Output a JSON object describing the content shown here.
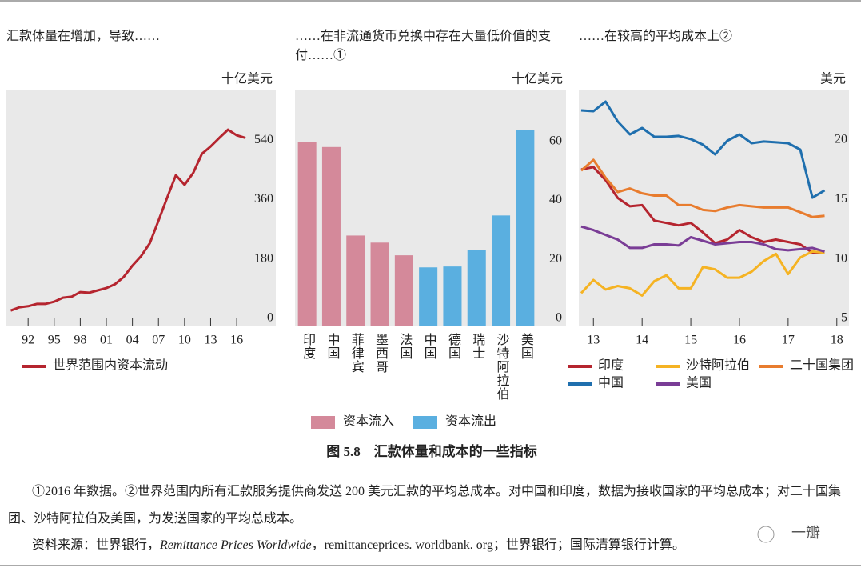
{
  "chart_data": [
    {
      "type": "line",
      "title": "汇款体量在增加，导致……",
      "unit": "十亿美元",
      "x": [
        1990,
        1991,
        1992,
        1993,
        1994,
        1995,
        1996,
        1997,
        1998,
        1999,
        2000,
        2001,
        2002,
        2003,
        2004,
        2005,
        2006,
        2007,
        2008,
        2009,
        2010,
        2011,
        2012,
        2013,
        2014,
        2015,
        2016,
        2017
      ],
      "series": [
        {
          "name": "世界范围内资本流动",
          "color": "#b5252f",
          "values": [
            48,
            58,
            61,
            68,
            68,
            75,
            87,
            90,
            104,
            102,
            109,
            116,
            128,
            150,
            184,
            213,
            252,
            320,
            390,
            458,
            429,
            465,
            523,
            545,
            571,
            596,
            579,
            571
          ]
        }
      ],
      "xlim": [
        1989.5,
        2020.5
      ],
      "xticks": [
        {
          "value": 1992,
          "label": "92"
        },
        {
          "value": 1995,
          "label": "95"
        },
        {
          "value": 1998,
          "label": "98"
        },
        {
          "value": 2001,
          "label": "01"
        },
        {
          "value": 2004,
          "label": "04"
        },
        {
          "value": 2007,
          "label": "07"
        },
        {
          "value": 2010,
          "label": "10"
        },
        {
          "value": 2013,
          "label": "13"
        },
        {
          "value": 2016,
          "label": "16"
        }
      ],
      "ylim": [
        0,
        715
      ],
      "yticks": [
        0,
        180,
        360,
        540
      ]
    },
    {
      "type": "bar",
      "title": "……在非流通货币兑换中存在大量低价值的支付……①",
      "unit": "十亿美元",
      "categories": [
        "印度",
        "中国",
        "菲律宾",
        "墨西哥",
        "法国",
        "中国",
        "德国",
        "瑞士",
        "沙特阿拉伯",
        "美国"
      ],
      "series": [
        {
          "name": "资本流入",
          "color": "#d4899a",
          "values": [
            62.4,
            60.8,
            30.8,
            28.4,
            24.1,
            null,
            null,
            null,
            null,
            null
          ]
        },
        {
          "name": "资本流出",
          "color": "#5aafe0",
          "values": [
            null,
            null,
            null,
            null,
            null,
            20.0,
            20.3,
            25.9,
            37.6,
            66.5
          ]
        }
      ],
      "ylim": [
        0,
        80
      ],
      "yticks": [
        0,
        20,
        40,
        60
      ]
    },
    {
      "type": "line",
      "title": "……在较高的平均成本上②",
      "unit": "美元",
      "x": [
        2012.75,
        2013,
        2013.25,
        2013.5,
        2013.75,
        2014,
        2014.25,
        2014.5,
        2014.75,
        2015,
        2015.25,
        2015.5,
        2015.75,
        2016,
        2016.25,
        2016.5,
        2016.75,
        2017,
        2017.25,
        2017.5,
        2017.75
      ],
      "series": [
        {
          "name": "印度",
          "color": "#b5252f",
          "values": [
            18.2,
            18.4,
            17.3,
            15.8,
            15.1,
            15.2,
            13.9,
            13.7,
            13.5,
            13.7,
            12.9,
            12.0,
            12.3,
            13.1,
            12.5,
            12.1,
            12.3,
            12.1,
            11.9,
            11.2,
            11.2
          ]
        },
        {
          "name": "沙特阿拉伯",
          "color": "#f5b323",
          "values": [
            7.8,
            8.9,
            8.1,
            8.4,
            8.2,
            7.6,
            8.8,
            9.3,
            8.2,
            8.2,
            10.0,
            9.8,
            9.1,
            9.1,
            9.6,
            10.5,
            11.1,
            9.4,
            10.8,
            11.3,
            11.2
          ]
        },
        {
          "name": "二十国集团",
          "color": "#e87c2e",
          "values": [
            18.1,
            19.0,
            17.5,
            16.3,
            16.6,
            16.2,
            16.0,
            16.0,
            15.2,
            15.2,
            14.8,
            14.7,
            15.0,
            15.2,
            15.1,
            15.0,
            15.0,
            15.0,
            14.6,
            14.2,
            14.3
          ]
        },
        {
          "name": "中国",
          "color": "#1f6fae",
          "values": [
            23.17,
            23.1,
            23.91,
            22.23,
            21.15,
            21.69,
            20.95,
            20.95,
            21.02,
            20.75,
            20.28,
            19.47,
            20.61,
            21.15,
            20.41,
            20.55,
            20.48,
            20.41,
            19.87,
            15.83,
            16.44
          ]
        },
        {
          "name": "美国",
          "color": "#7a3d96",
          "values": [
            13.4,
            13.1,
            12.7,
            12.3,
            11.6,
            11.6,
            11.9,
            11.9,
            11.8,
            12.5,
            12.2,
            11.9,
            12.0,
            12.1,
            12.1,
            11.9,
            11.5,
            11.4,
            11.5,
            11.6,
            11.3
          ]
        }
      ],
      "xlim": [
        2012.7,
        2018.25
      ],
      "xticks": [
        {
          "value": 2013,
          "label": "13"
        },
        {
          "value": 2014,
          "label": "14"
        },
        {
          "value": 2015,
          "label": "15"
        },
        {
          "value": 2016,
          "label": "16"
        },
        {
          "value": 2017,
          "label": "17"
        },
        {
          "value": 2018,
          "label": "18"
        }
      ],
      "ylim": [
        5,
        24.85
      ],
      "yticks": [
        5,
        10,
        15,
        20
      ]
    }
  ],
  "caption": "图 5.8　汇款体量和成本的一些指标",
  "notes": "①2016 年数据。②世界范围内所有汇款服务提供商发送 200 美元汇款的平均总成本。对中国和印度，数据为接收国家的平均总成本；对二十国集团、沙特阿拉伯及美国，为发送国家的平均总成本。",
  "source": [
    "资料来源：世界银行，",
    "Remittance Prices Worldwide",
    "，",
    "remittanceprices. worldbank. org",
    "；世界银行；国际清算银行计算。"
  ],
  "watermark": "一瓣"
}
